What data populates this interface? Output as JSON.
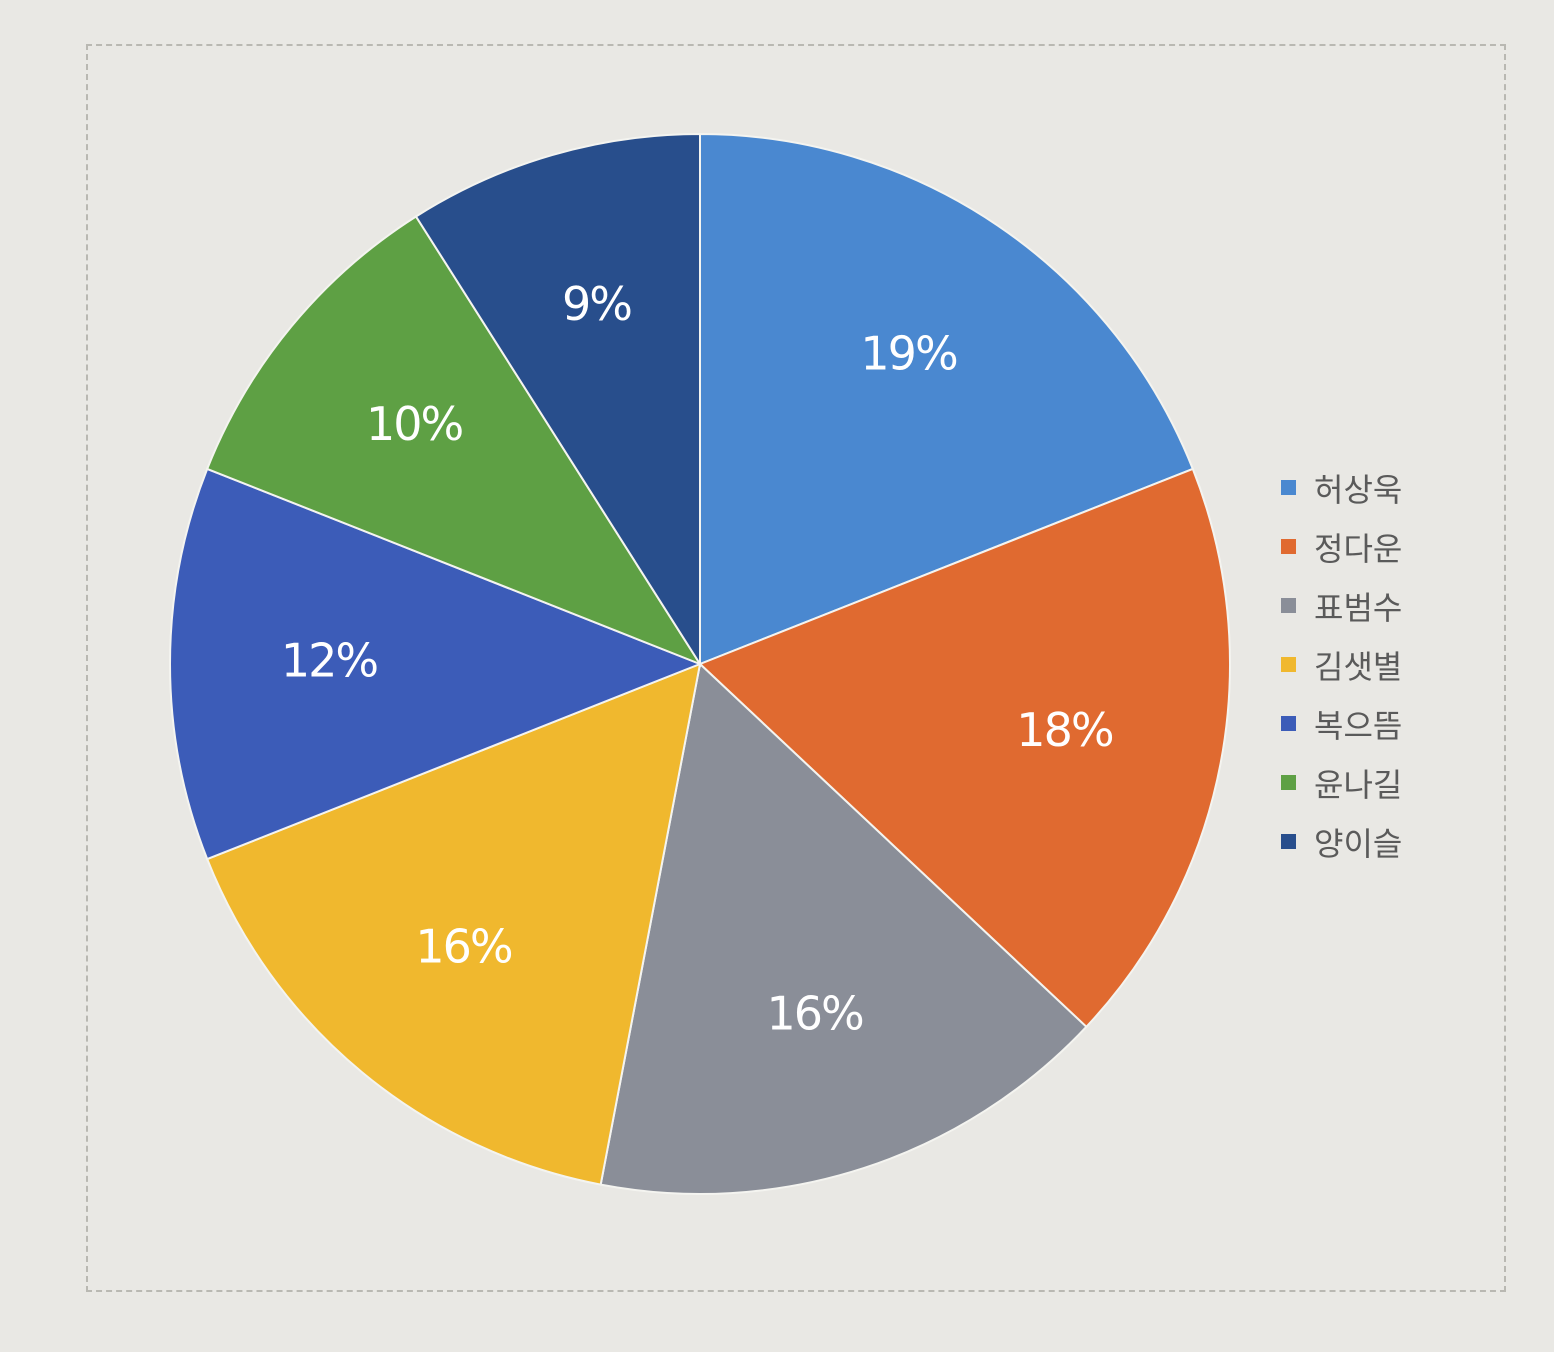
{
  "chart_data": {
    "type": "pie",
    "categories": [
      "허상욱",
      "정다운",
      "표범수",
      "김샛별",
      "복으뜸",
      "윤나길",
      "양이슬"
    ],
    "values": [
      19,
      18,
      16,
      16,
      12,
      10,
      9
    ],
    "labels": [
      "19%",
      "18%",
      "16%",
      "16%",
      "12%",
      "10%",
      "9%"
    ],
    "colors": [
      "#4a88d0",
      "#e06a30",
      "#8a8e98",
      "#f0b82e",
      "#3c5cb8",
      "#5ea044",
      "#284e8c"
    ],
    "start_angle": "12 o'clock",
    "direction": "clockwise",
    "legend": "right"
  }
}
